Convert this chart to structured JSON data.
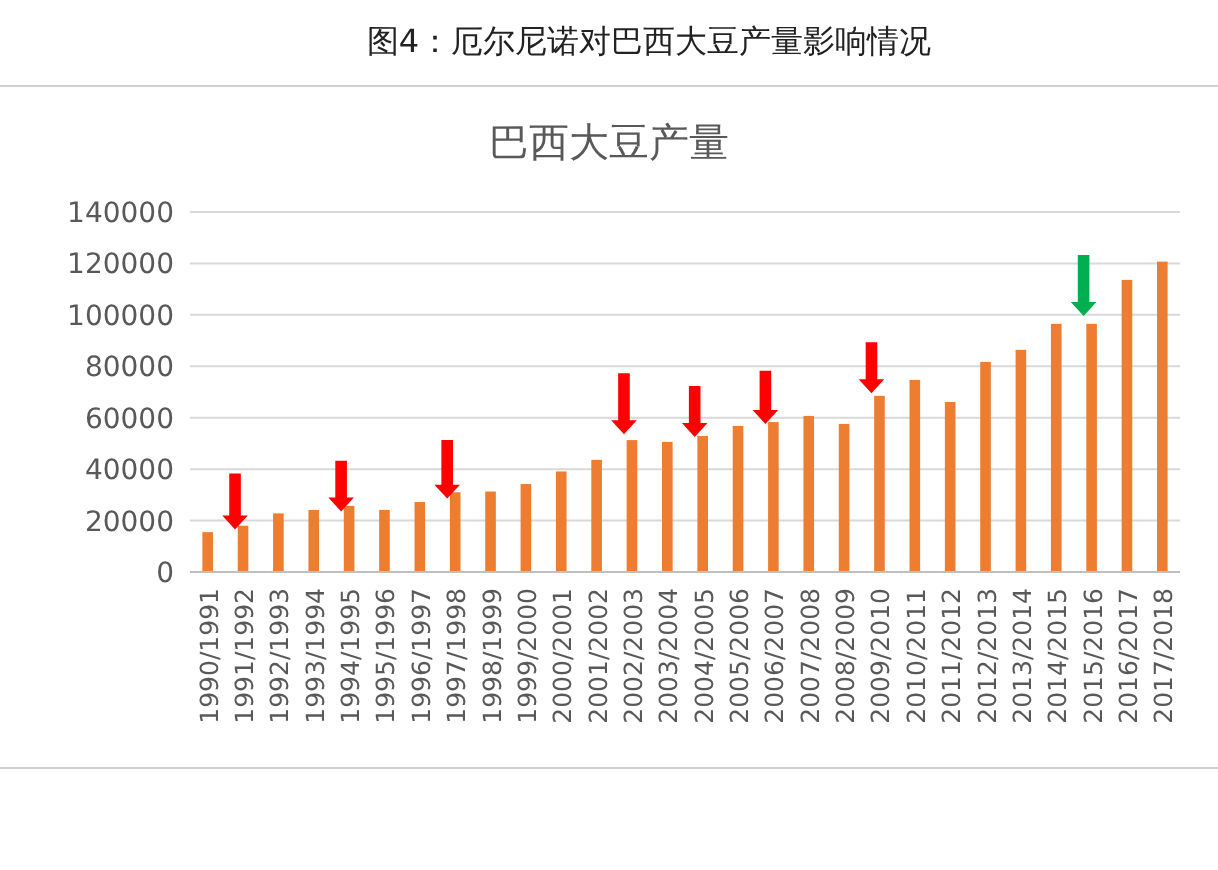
{
  "chart_data": {
    "type": "bar",
    "title": "图4：厄尔尼诺对巴西大豆产量影响情况",
    "subtitle": "巴西大豆产量",
    "categories": [
      "1990/1991",
      "1991/1992",
      "1992/1993",
      "1993/1994",
      "1994/1995",
      "1995/1996",
      "1996/1997",
      "1997/1998",
      "1998/1999",
      "1999/2000",
      "2000/2001",
      "2001/2002",
      "2002/2003",
      "2003/2004",
      "2004/2005",
      "2005/2006",
      "2006/2007",
      "2007/2008",
      "2008/2009",
      "2009/2010",
      "2010/2011",
      "2011/2012",
      "2012/2013",
      "2013/2014",
      "2014/2015",
      "2015/2016",
      "2016/2017",
      "2017/2018"
    ],
    "values": [
      15500,
      18000,
      22800,
      24100,
      25700,
      24100,
      27200,
      31000,
      31300,
      34200,
      39100,
      43600,
      51300,
      50600,
      52900,
      56800,
      58300,
      60700,
      57600,
      68500,
      74700,
      66100,
      81700,
      86400,
      96500,
      96500,
      113600,
      120700
    ],
    "color": "#ed7d31",
    "ylim": [
      0,
      140000
    ],
    "yticks": [
      0,
      20000,
      40000,
      60000,
      80000,
      100000,
      120000,
      140000
    ],
    "grid": "y"
  }
}
